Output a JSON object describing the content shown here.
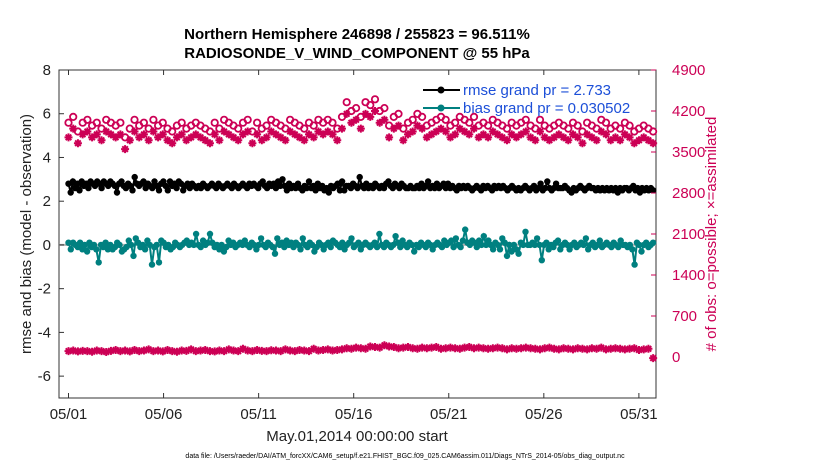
{
  "chart_data": {
    "type": "line",
    "title_line1": "Northern Hemisphere 246898 / 255823 =  96.511%",
    "title_line2": "RADIOSONDE_V_WIND_COMPONENT @ 55 hPa",
    "xlabel": "May.01,2014 00:00:00 start",
    "ylabel": "rmse and bias (model - observation)",
    "ylabel_right": "# of obs: o=possible; ×=assimilated",
    "footnote": "data file: /Users/raeder/DAI/ATM_forcXX/CAM6_setup/f.e21.FHIST_BGC.f09_025.CAM6assim.011/Diags_NTrS_2014-05/obs_diag_output.nc",
    "xlim": [
      0.5,
      31.9
    ],
    "ylim": [
      -7,
      8
    ],
    "ylim_right": [
      -700,
      4900
    ],
    "x_ticks": [
      1,
      6,
      11,
      16,
      21,
      26,
      31
    ],
    "x_tick_labels": [
      "05/01",
      "05/06",
      "05/11",
      "05/16",
      "05/21",
      "05/26",
      "05/31"
    ],
    "y_ticks": [
      -6,
      -4,
      -2,
      0,
      2,
      4,
      6,
      8
    ],
    "y_tick_labels": [
      "-6",
      "-4",
      "-2",
      "0",
      "2",
      "4",
      "6",
      "8"
    ],
    "y_ticks_right": [
      0,
      700,
      1400,
      2100,
      2800,
      3500,
      4200,
      4900
    ],
    "y_tick_labels_right": [
      "0",
      "700",
      "1400",
      "2100",
      "2800",
      "3500",
      "4200",
      "4900"
    ],
    "legend": [
      {
        "label": "rmse grand pr = 2.733",
        "color": "#000000",
        "marker": "dot"
      },
      {
        "label": "bias grand pr = 0.030502",
        "color": "#008080",
        "marker": "dot"
      }
    ],
    "zero_line_color": "#b0b0b0",
    "obs_color": "#cc0055",
    "x_step": 0.25,
    "series": [
      {
        "name": "rmse",
        "color": "#000000",
        "axis": "left",
        "values": [
          2.8,
          2.4,
          2.9,
          2.6,
          2.8,
          2.5,
          2.9,
          2.7,
          2.8,
          2.6,
          2.9,
          2.8,
          2.7,
          2.9,
          2.8,
          2.6,
          2.9,
          2.8,
          2.7,
          2.9,
          2.8,
          2.7,
          2.4,
          2.8,
          2.9,
          2.7,
          2.6,
          2.8,
          2.7,
          2.5,
          3.1,
          2.8,
          2.7,
          2.8,
          2.9,
          2.6,
          2.8,
          2.7,
          2.6,
          2.9,
          2.7,
          2.5,
          2.8,
          2.9,
          2.7,
          2.5,
          2.9,
          2.7,
          2.8,
          2.6,
          2.9,
          2.8,
          2.5,
          2.7,
          2.8,
          2.6,
          2.8,
          2.7,
          2.6,
          2.7,
          2.6,
          2.8,
          2.7,
          2.6,
          2.7,
          2.8,
          2.7,
          2.6,
          2.8,
          2.7,
          2.6,
          2.7,
          2.8,
          2.7,
          2.6,
          2.8,
          2.7,
          2.6,
          2.7,
          2.8,
          2.7,
          2.6,
          2.8,
          2.7,
          2.8,
          2.7,
          2.6,
          2.8,
          2.9,
          2.7,
          2.6,
          2.8,
          2.7,
          2.8,
          2.6,
          2.9,
          2.7,
          3.0,
          2.7,
          2.5,
          2.8,
          2.6,
          2.7,
          2.6,
          2.8,
          2.6,
          2.5,
          2.7,
          2.6,
          2.9,
          2.6,
          2.7,
          2.5,
          2.8,
          2.6,
          2.7,
          2.5,
          2.6,
          2.4,
          2.7,
          2.6,
          2.7,
          2.8,
          2.5,
          2.9,
          2.5,
          2.7,
          2.7,
          2.6,
          2.8,
          2.7,
          2.6,
          3.1,
          2.7,
          2.6,
          2.8,
          2.6,
          2.7,
          2.6,
          2.8,
          2.7,
          2.6,
          2.7,
          2.6,
          2.8,
          2.9,
          2.7,
          2.6,
          2.8,
          2.7,
          2.6,
          2.8,
          2.7,
          2.6,
          2.6,
          2.7,
          2.6,
          2.6,
          2.7,
          2.6,
          2.8,
          2.6,
          2.7,
          2.9,
          2.6,
          2.7,
          2.6,
          2.8,
          2.6,
          2.7,
          2.8,
          2.6,
          2.8,
          2.6,
          2.7,
          2.6,
          2.5,
          2.7,
          2.6,
          2.7,
          2.6,
          2.7,
          2.6,
          2.5,
          2.6,
          2.7,
          2.6,
          2.5,
          2.7,
          2.6,
          2.7,
          2.6,
          2.5,
          2.7,
          2.6,
          2.7,
          2.6,
          2.7,
          2.6,
          2.5,
          2.6,
          2.7,
          2.6,
          2.5,
          2.6,
          2.5,
          2.6,
          2.7,
          2.6,
          2.5,
          2.6,
          2.7,
          2.5,
          2.6,
          2.8,
          2.5,
          2.6,
          2.9,
          2.6,
          2.5,
          2.6,
          2.8,
          2.6,
          2.6,
          2.6,
          2.7,
          2.6,
          2.5,
          2.4,
          2.6,
          2.5,
          2.6,
          2.7,
          2.6,
          2.5,
          2.6,
          2.7,
          2.6,
          2.6,
          2.5,
          2.6,
          2.5,
          2.6,
          2.5,
          2.6,
          2.5,
          2.6,
          2.5,
          2.6,
          2.4,
          2.6,
          2.5,
          2.6,
          2.6,
          2.5,
          2.6,
          2.7,
          2.5,
          2.6,
          2.4,
          2.6,
          2.5,
          2.6,
          2.5,
          2.6,
          2.5
        ]
      },
      {
        "name": "bias",
        "color": "#008080",
        "axis": "left",
        "values": [
          0.1,
          -0.2,
          0.1,
          0.0,
          -0.1,
          0.1,
          -0.2,
          0.0,
          -0.3,
          0.1,
          -0.1,
          0.0,
          -0.2,
          -0.8,
          0.0,
          -0.1,
          0.1,
          -0.2,
          0.0,
          -0.2,
          -0.1,
          0.1,
          0.0,
          -0.3,
          -0.2,
          -0.1,
          0.2,
          0.0,
          -0.5,
          0.3,
          0.1,
          -0.1,
          0.0,
          -0.2,
          0.2,
          0.0,
          -0.9,
          -0.1,
          0.0,
          -0.8,
          0.2,
          0.1,
          -0.1,
          0.0,
          -0.2,
          -0.1,
          0.1,
          0.0,
          -0.1,
          0.0,
          0.1,
          0.2,
          0.0,
          0.1,
          0.0,
          0.5,
          0.0,
          -0.1,
          0.2,
          0.0,
          0.1,
          0.5,
          0.1,
          -0.1,
          0.0,
          -0.2,
          0.0,
          -0.3,
          -0.1,
          0.2,
          0.0,
          0.1,
          -0.1,
          0.0,
          0.1,
          0.0,
          0.2,
          0.0,
          -0.1,
          0.1,
          0.0,
          -0.2,
          0.0,
          0.3,
          0.0,
          -0.1,
          0.1,
          0.0,
          -0.1,
          -0.4,
          0.3,
          0.0,
          0.1,
          -0.1,
          0.2,
          0.0,
          0.1,
          -0.1,
          0.1,
          0.0,
          -0.2,
          0.3,
          0.0,
          -0.1,
          0.1,
          0.0,
          -0.3,
          -0.1,
          0.1,
          0.0,
          -0.2,
          0.0,
          0.1,
          -0.1,
          0.2,
          0.1,
          0.0,
          -0.1,
          0.1,
          -0.2,
          0.0,
          0.1,
          0.3,
          -0.1,
          0.0,
          0.1,
          -0.2,
          0.0,
          0.1,
          0.0,
          -0.1,
          0.0,
          0.1,
          -0.1,
          0.5,
          0.0,
          -0.1,
          0.1,
          0.0,
          -0.1,
          0.0,
          0.4,
          0.1,
          -0.1,
          0.2,
          0.0,
          -0.1,
          0.1,
          0.0,
          -0.3,
          0.0,
          -0.1,
          0.1,
          0.0,
          -0.1,
          0.1,
          0.0,
          -0.2,
          0.0,
          0.1,
          0.0,
          -0.1,
          0.2,
          0.0,
          0.1,
          0.2,
          -0.1,
          0.3,
          0.0,
          -0.1,
          0.2,
          0.7,
          0.1,
          0.0,
          0.2,
          0.1,
          -0.1,
          0.2,
          0.0,
          0.4,
          0.0,
          0.2,
          0.0,
          -0.2,
          0.1,
          0.0,
          -0.2,
          0.3,
          0.1,
          -0.5,
          0.0,
          -0.3,
          0.0,
          -0.2,
          -0.4,
          0.1,
          0.0,
          0.6,
          0.0,
          0.0,
          0.1,
          0.0,
          0.3,
          0.0,
          -0.7,
          0.0,
          0.1,
          -0.2,
          0.0,
          -0.1,
          0.1,
          0.2,
          -0.2,
          0.0,
          0.1,
          0.0,
          -0.2,
          0.0,
          0.1,
          -0.1,
          0.0,
          0.1,
          0.0,
          0.3,
          -0.2,
          0.0,
          0.1,
          -0.1,
          0.0,
          0.2,
          -0.1,
          0.0,
          0.1,
          0.0,
          -0.1,
          0.1,
          0.0,
          -0.1,
          0.2,
          0.0,
          0.0,
          -0.1,
          0.0,
          -0.2,
          -0.9,
          0.1,
          0.0,
          -0.3,
          0.0,
          0.1,
          -0.1,
          0.0,
          0.1
        ]
      },
      {
        "name": "obs_possible_high",
        "color": "#cc0055",
        "axis": "right",
        "marker": "circle",
        "values": [
          4000,
          4100,
          3850,
          4000,
          4050,
          3950,
          4000,
          3900,
          4050,
          4000,
          3950,
          4000,
          3750,
          3900,
          4050,
          3950,
          4000,
          3900,
          4050,
          3950,
          4000,
          3900,
          3850,
          3950,
          4000,
          3900,
          3950,
          4000,
          3950,
          3900,
          3850,
          4000,
          3900,
          4050,
          4000,
          3950,
          3900,
          4000,
          4050,
          3850,
          4000,
          3900,
          3950,
          4050,
          4000,
          3950,
          3900,
          4050,
          4000,
          3950,
          3900,
          4000,
          3950,
          4050,
          4000,
          4050,
          4000,
          3900,
          4100,
          4350,
          4200,
          4250,
          4100,
          4350,
          4300,
          4400,
          4200,
          4250,
          3950,
          4100,
          4150,
          3900,
          4000,
          4050,
          4150,
          4100,
          3950,
          4000,
          4050,
          4100,
          4050,
          3950,
          4000,
          4100,
          4050,
          4000,
          4100,
          3950,
          4000,
          3950,
          4050,
          4000,
          3950,
          3900,
          4000,
          3950,
          4000,
          4050,
          3950,
          3900,
          4050,
          3950,
          3900,
          3950,
          4000,
          3950,
          3900,
          4000,
          3950,
          3850,
          4000,
          3950,
          3900,
          4050,
          4000,
          3900,
          3950,
          3900,
          4000,
          3950,
          3850,
          3900,
          3950,
          3900,
          3850
        ]
      },
      {
        "name": "obs_assimilated_high",
        "color": "#cc0055",
        "axis": "right",
        "marker": "star",
        "values": [
          3750,
          3900,
          3650,
          3800,
          3850,
          3750,
          3800,
          3700,
          3850,
          3800,
          3750,
          3800,
          3550,
          3700,
          3850,
          3750,
          3800,
          3700,
          3850,
          3750,
          3800,
          3700,
          3650,
          3750,
          3800,
          3700,
          3750,
          3800,
          3750,
          3700,
          3650,
          3800,
          3700,
          3850,
          3800,
          3750,
          3700,
          3800,
          3850,
          3650,
          3800,
          3700,
          3750,
          3850,
          3800,
          3750,
          3700,
          3850,
          3800,
          3750,
          3700,
          3800,
          3750,
          3850,
          3800,
          3850,
          3800,
          3700,
          3900,
          4150,
          4000,
          4050,
          3900,
          4150,
          4100,
          4200,
          4000,
          4050,
          3750,
          3900,
          3950,
          3700,
          3800,
          3850,
          3950,
          3900,
          3750,
          3800,
          3850,
          3900,
          3850,
          3750,
          3800,
          3900,
          3850,
          3800,
          3900,
          3750,
          3800,
          3750,
          3850,
          3800,
          3750,
          3700,
          3800,
          3750,
          3800,
          3850,
          3750,
          3700,
          3850,
          3750,
          3700,
          3750,
          3800,
          3750,
          3700,
          3800,
          3750,
          3650,
          3800,
          3750,
          3700,
          3850,
          3800,
          3700,
          3750,
          3700,
          3800,
          3750,
          3650,
          3700,
          3750,
          3700,
          3650
        ]
      },
      {
        "name": "obs_low",
        "color": "#cc0055",
        "axis": "right",
        "marker": "star",
        "values": [
          100,
          110,
          95,
          105,
          100,
          90,
          110,
          100,
          85,
          105,
          120,
          100,
          110,
          95,
          120,
          100,
          110,
          130,
          100,
          110,
          95,
          120,
          100,
          90,
          110,
          105,
          130,
          100,
          110,
          120,
          100,
          95,
          110,
          100,
          130,
          110,
          100,
          140,
          110,
          100,
          120,
          105,
          100,
          115,
          110,
          100,
          130,
          110,
          100,
          120,
          110,
          100,
          140,
          110,
          120,
          130,
          110,
          120,
          130,
          150,
          140,
          160,
          150,
          140,
          180,
          170,
          160,
          200,
          180,
          170,
          150,
          160,
          170,
          150,
          140,
          160,
          150,
          160,
          170,
          140,
          150,
          160,
          150,
          140,
          160,
          170,
          150,
          160,
          150,
          140,
          150,
          160,
          150,
          130,
          150,
          140,
          150,
          160,
          150,
          140,
          130,
          150,
          160,
          140,
          130,
          150,
          140,
          130,
          150,
          140,
          130,
          150,
          140,
          160,
          130,
          140,
          150,
          140,
          130,
          140,
          150,
          120,
          130,
          140,
          -20
        ]
      }
    ]
  }
}
